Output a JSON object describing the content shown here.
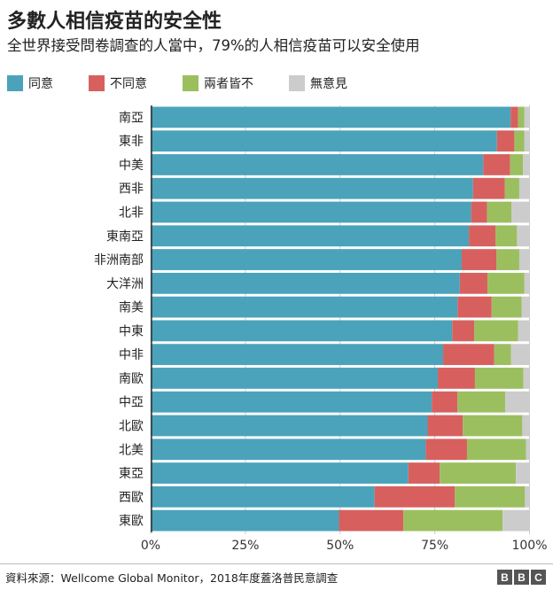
{
  "chart_data": {
    "type": "bar",
    "orientation": "horizontal",
    "stacked": true,
    "title": "多數人相信疫苗的安全性",
    "subtitle": "全世界接受問卷調查的人當中，79%的人相信疫苗可以安全使用",
    "categories": [
      "南亞",
      "東非",
      "中美",
      "西非",
      "北非",
      "東南亞",
      "非洲南部",
      "大洋洲",
      "南美",
      "中東",
      "中非",
      "南歐",
      "中亞",
      "北歐",
      "北美",
      "東亞",
      "西歐",
      "東歐"
    ],
    "series": [
      {
        "name": "同意",
        "color": "#4aa3ba",
        "values": [
          95.0,
          91.4,
          87.8,
          85.1,
          84.6,
          84.0,
          82.1,
          81.6,
          81.0,
          79.6,
          77.2,
          75.8,
          74.2,
          73.1,
          72.6,
          68.0,
          59.1,
          49.7
        ]
      },
      {
        "name": "不同意",
        "color": "#d7605f",
        "values": [
          2.0,
          4.6,
          7.1,
          8.4,
          4.2,
          7.0,
          9.2,
          7.3,
          9.0,
          5.8,
          13.5,
          9.8,
          6.8,
          9.3,
          10.9,
          8.3,
          21.2,
          17.0
        ]
      },
      {
        "name": "兩者皆不",
        "color": "#9bbf5f",
        "values": [
          1.6,
          2.6,
          3.4,
          3.8,
          6.4,
          5.7,
          6.0,
          9.7,
          7.9,
          11.6,
          4.4,
          12.8,
          12.6,
          15.7,
          15.6,
          20.1,
          18.5,
          26.2
        ]
      },
      {
        "name": "無意見",
        "color": "#cccccc",
        "values": [
          1.4,
          1.4,
          1.7,
          2.7,
          4.8,
          3.3,
          2.7,
          1.4,
          2.1,
          3.0,
          4.9,
          1.6,
          6.4,
          1.9,
          0.9,
          3.6,
          1.2,
          7.1
        ]
      }
    ],
    "xlim": [
      0,
      100
    ],
    "xticks": [
      "0%",
      "25%",
      "50%",
      "75%",
      "100%"
    ],
    "xtick_values": [
      0,
      25,
      50,
      75,
      100
    ],
    "grid": true,
    "legend_position": "top-left"
  },
  "footer": {
    "source": "資料來源：Wellcome Global Monitor，2018年度蓋洛普民意調查",
    "logo": [
      "B",
      "B",
      "C"
    ]
  }
}
